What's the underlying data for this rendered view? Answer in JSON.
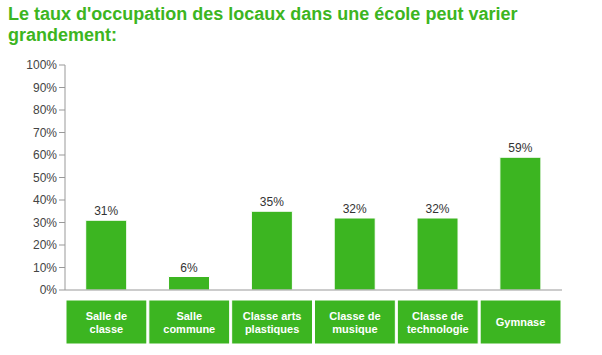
{
  "chart_data": {
    "type": "bar",
    "title": "Le taux d'occupation des locaux dans une école peut varier grandement:",
    "categories": [
      "Salle de classe",
      "Salle commune",
      "Classe arts plastiques",
      "Classe de musique",
      "Classe de technologie",
      "Gymnase"
    ],
    "values": [
      31,
      6,
      35,
      32,
      32,
      59
    ],
    "value_labels": [
      "31%",
      "6%",
      "35%",
      "32%",
      "32%",
      "59%"
    ],
    "color": "#3cb521",
    "ylim": [
      0,
      100
    ],
    "yticks": [
      {
        "value": 0,
        "label": "0%"
      },
      {
        "value": 10,
        "label": "10%"
      },
      {
        "value": 20,
        "label": "20%"
      },
      {
        "value": 30,
        "label": "30%"
      },
      {
        "value": 40,
        "label": "40%"
      },
      {
        "value": 50,
        "label": "50%"
      },
      {
        "value": 60,
        "label": "60%"
      },
      {
        "value": 70,
        "label": "70%"
      },
      {
        "value": 80,
        "label": "80%"
      },
      {
        "value": 90,
        "label": "90%"
      },
      {
        "value": 100,
        "label": "100%"
      }
    ],
    "grid": false,
    "data_labels": true
  }
}
